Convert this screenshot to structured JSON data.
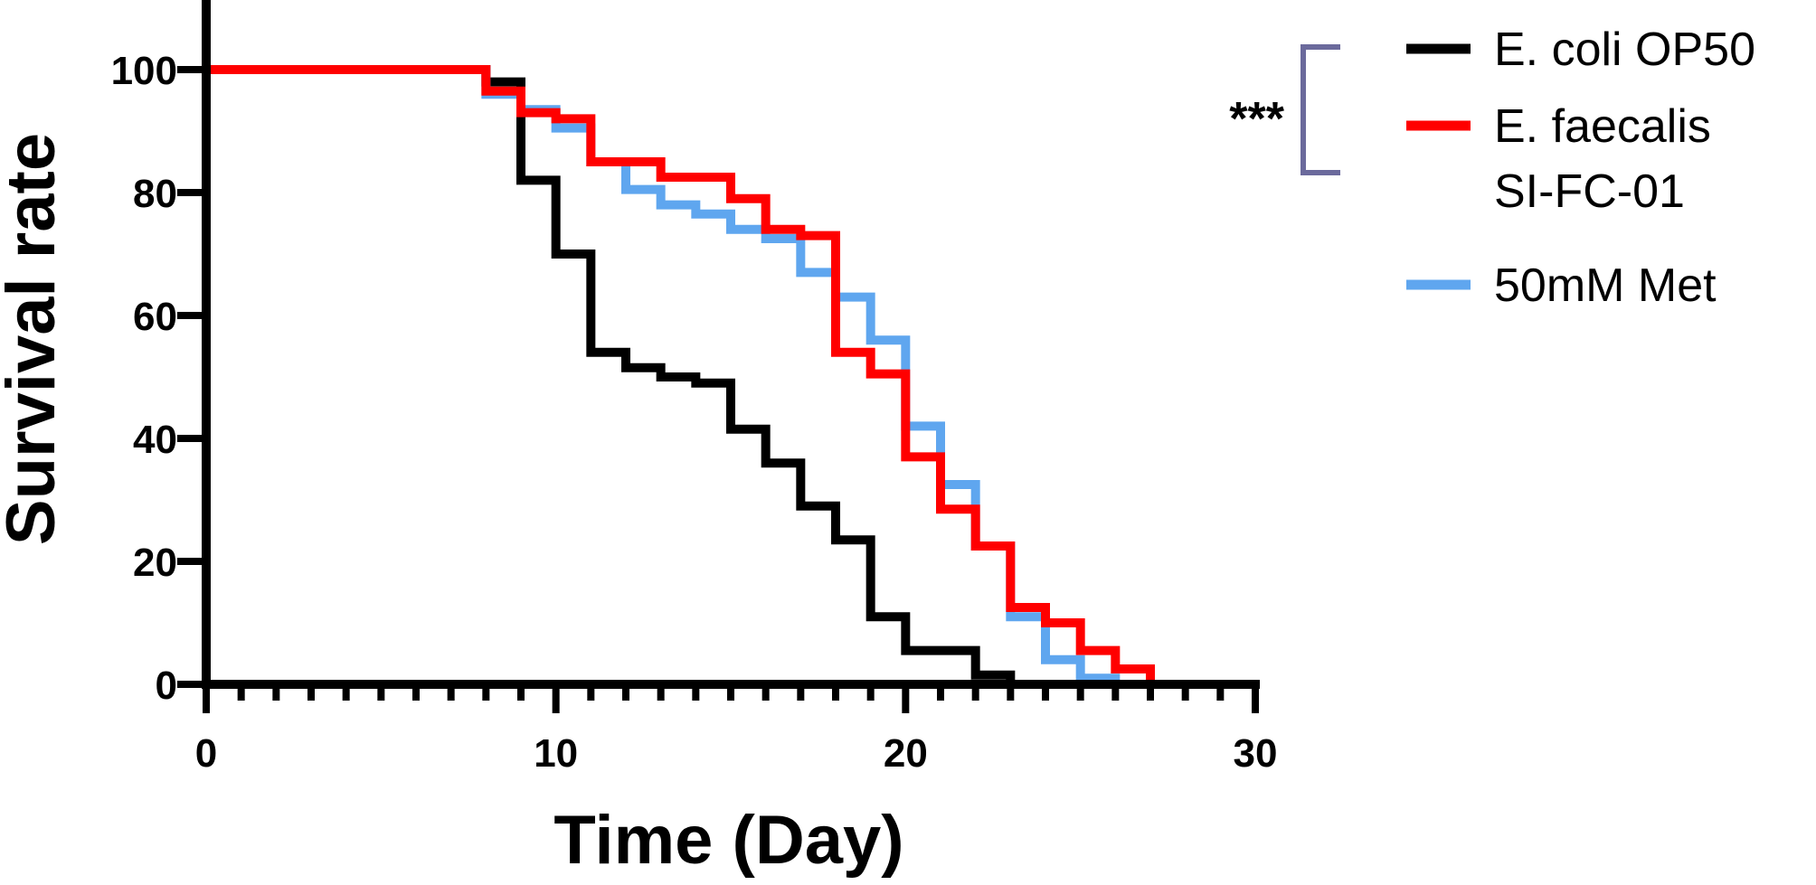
{
  "chart_data": {
    "type": "line",
    "step": true,
    "xlabel": "Time (Day)",
    "ylabel": "Survival rate",
    "xlim": [
      0,
      30
    ],
    "ylim": [
      0,
      100
    ],
    "x_ticks": [
      "0",
      "10",
      "20",
      "30"
    ],
    "y_ticks": [
      "0",
      "20",
      "40",
      "60",
      "80",
      "100"
    ],
    "x_minor_step": 1,
    "grid": false,
    "legend_position": "right",
    "significance": {
      "label": "***",
      "groups": [
        "E. coli OP50",
        "E. faecalis SI-FC-01"
      ],
      "color": "#6b6a9c"
    },
    "series": [
      {
        "name": "E. coli OP50",
        "legend_lines": [
          "E. coli OP50"
        ],
        "color": "#000000",
        "x": [
          0,
          8,
          9,
          10,
          11,
          12,
          13,
          14,
          15,
          16,
          17,
          18,
          19,
          20,
          21,
          22,
          23
        ],
        "y": [
          100,
          98,
          82,
          70,
          54,
          51.5,
          50,
          49,
          41.5,
          36,
          29,
          23.5,
          11,
          5.5,
          5.5,
          1.5,
          0
        ]
      },
      {
        "name": "50mM Met",
        "legend_lines": [
          "50mM Met"
        ],
        "color": "#5fa6ef",
        "x": [
          0,
          8,
          9,
          10,
          11,
          12,
          13,
          14,
          15,
          16,
          17,
          18,
          19,
          20,
          21,
          22,
          23,
          24,
          25,
          26
        ],
        "y": [
          100,
          96,
          93.5,
          90.5,
          85,
          80.5,
          78,
          76.5,
          74,
          72.5,
          67,
          63,
          56,
          42,
          32.5,
          22.5,
          11,
          4,
          1,
          0
        ]
      },
      {
        "name": "E. faecalis SI-FC-01",
        "legend_lines": [
          "E. faecalis",
          "SI-FC-01"
        ],
        "color": "#ff0000",
        "x": [
          0,
          8,
          9,
          10,
          11,
          12,
          13,
          14,
          15,
          16,
          17,
          18,
          19,
          20,
          21,
          22,
          23,
          24,
          25,
          26,
          27
        ],
        "y": [
          100,
          96.5,
          93,
          92,
          85,
          85,
          82.5,
          82.5,
          79,
          74,
          73,
          54,
          50.5,
          37,
          28.5,
          22.5,
          12.5,
          10,
          5.5,
          2.5,
          0
        ]
      }
    ]
  }
}
